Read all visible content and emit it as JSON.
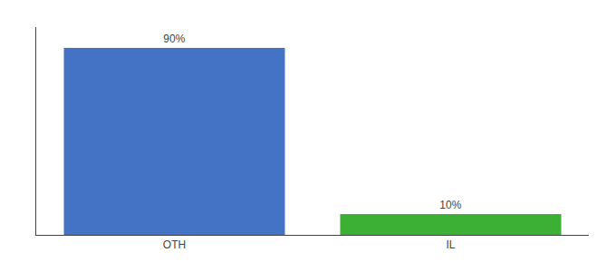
{
  "chart_data": {
    "type": "bar",
    "categories": [
      "OTH",
      "IL"
    ],
    "values": [
      90,
      10
    ],
    "value_labels": [
      "90%",
      "10%"
    ],
    "colors": [
      "#4472C4",
      "#3CB034"
    ],
    "ylim": [
      0,
      100
    ],
    "data_labels": true,
    "tick_labels": "x",
    "grid": false
  }
}
